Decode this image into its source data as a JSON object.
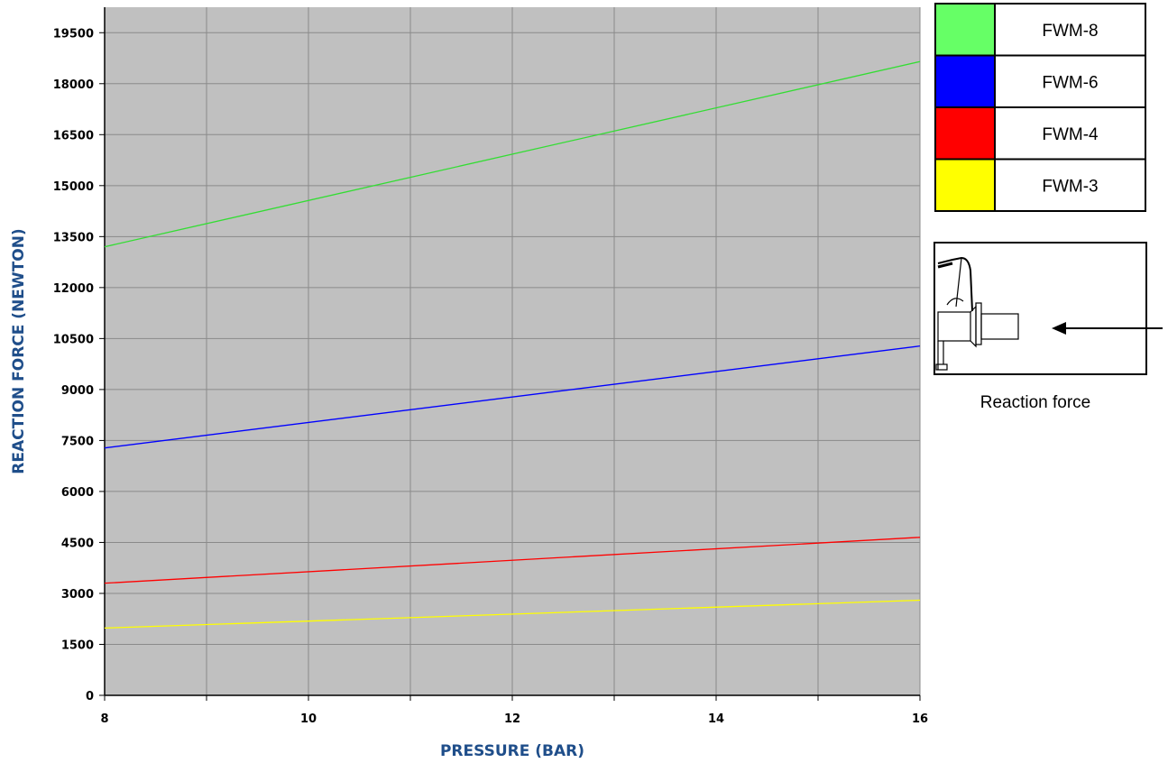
{
  "chart_data": {
    "type": "line",
    "xlabel": "PRESSURE (BAR)",
    "ylabel": "REACTION FORCE (NEWTON)",
    "xlim": [
      8,
      16
    ],
    "ylim": [
      0,
      20250
    ],
    "x_ticks": [
      8,
      10,
      12,
      14,
      16
    ],
    "x_tick_labels": [
      "8",
      "10",
      "12",
      "14",
      "16"
    ],
    "y_ticks": [
      0,
      1500,
      3000,
      4500,
      6000,
      7500,
      9000,
      10500,
      12000,
      13500,
      15000,
      16500,
      18000,
      19500
    ],
    "y_tick_labels": [
      "0",
      "1500",
      "3000",
      "4500",
      "6000",
      "7500",
      "9000",
      "10500",
      "12000",
      "13500",
      "15000",
      "16500",
      "18000",
      "19500"
    ],
    "grid": true,
    "plot_background": "#c0c0c0",
    "x": [
      8,
      16
    ],
    "series": [
      {
        "name": "FWM-8",
        "color": "#33dd33",
        "swatch": "#66ff66",
        "values": [
          13200,
          18650
        ]
      },
      {
        "name": "FWM-6",
        "color": "#0000ff",
        "swatch": "#0000ff",
        "values": [
          7280,
          10280
        ]
      },
      {
        "name": "FWM-4",
        "color": "#ff0000",
        "swatch": "#ff0000",
        "values": [
          3300,
          4650
        ]
      },
      {
        "name": "FWM-3",
        "color": "#ffff00",
        "swatch": "#ffff00",
        "values": [
          1980,
          2800
        ]
      }
    ],
    "legend": "top-right"
  },
  "inset": {
    "caption": "Reaction force",
    "icon": "nozzle-icon"
  }
}
